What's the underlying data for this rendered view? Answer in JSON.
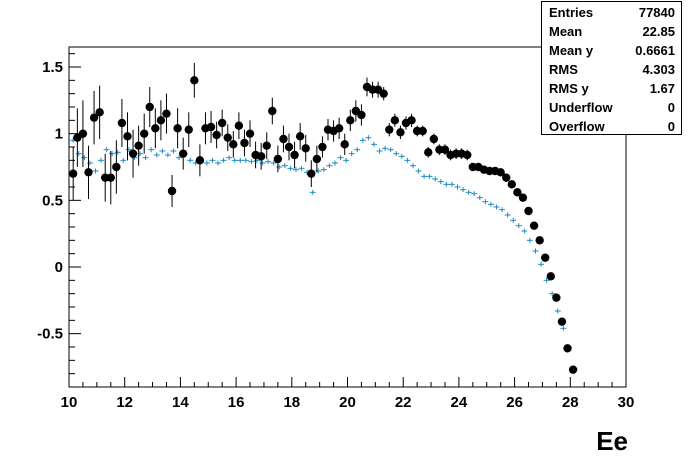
{
  "chart_data": {
    "type": "scatter",
    "xlabel": "Ee",
    "xlim": [
      10,
      30
    ],
    "ylim": [
      -0.9,
      1.65
    ],
    "x_ticks": [
      "10",
      "12",
      "14",
      "16",
      "18",
      "20",
      "22",
      "24",
      "26",
      "28",
      "30"
    ],
    "y_ticks": [
      "-0.5",
      "0",
      "0.5",
      "1",
      "1.5"
    ],
    "y_tick_values": [
      -0.5,
      0,
      0.5,
      1,
      1.5
    ],
    "colors": {
      "points": "#000000",
      "profile": "#1f8ac0",
      "frame": "#000000"
    },
    "series": [
      {
        "style": "black-markers-with-error-bars",
        "points": [
          [
            10.15,
            0.7,
            0.2
          ],
          [
            10.3,
            0.97,
            0.22
          ],
          [
            10.5,
            1.0,
            0.25
          ],
          [
            10.7,
            0.71,
            0.2
          ],
          [
            10.9,
            1.12,
            0.2
          ],
          [
            11.1,
            1.16,
            0.2
          ],
          [
            11.3,
            0.67,
            0.18
          ],
          [
            11.5,
            0.67,
            0.2
          ],
          [
            11.7,
            0.75,
            0.2
          ],
          [
            11.9,
            1.08,
            0.18
          ],
          [
            12.1,
            0.98,
            0.18
          ],
          [
            12.3,
            0.85,
            0.18
          ],
          [
            12.5,
            0.91,
            0.15
          ],
          [
            12.7,
            1.0,
            0.15
          ],
          [
            12.9,
            1.2,
            0.15
          ],
          [
            13.1,
            1.04,
            0.15
          ],
          [
            13.3,
            1.1,
            0.15
          ],
          [
            13.5,
            1.15,
            0.15
          ],
          [
            13.7,
            0.57,
            0.12
          ],
          [
            13.9,
            1.04,
            0.15
          ],
          [
            14.1,
            0.85,
            0.12
          ],
          [
            14.3,
            1.03,
            0.13
          ],
          [
            14.5,
            1.4,
            0.13
          ],
          [
            14.7,
            0.8,
            0.12
          ],
          [
            14.9,
            1.04,
            0.12
          ],
          [
            15.1,
            1.05,
            0.12
          ],
          [
            15.3,
            0.99,
            0.1
          ],
          [
            15.5,
            1.08,
            0.1
          ],
          [
            15.7,
            0.97,
            0.1
          ],
          [
            15.9,
            0.92,
            0.1
          ],
          [
            16.1,
            1.06,
            0.1
          ],
          [
            16.3,
            0.93,
            0.1
          ],
          [
            16.5,
            1.0,
            0.1
          ],
          [
            16.7,
            0.84,
            0.1
          ],
          [
            16.9,
            0.83,
            0.1
          ],
          [
            17.1,
            0.91,
            0.1
          ],
          [
            17.3,
            1.17,
            0.1
          ],
          [
            17.5,
            0.81,
            0.1
          ],
          [
            17.7,
            0.96,
            0.1
          ],
          [
            17.9,
            0.9,
            0.1
          ],
          [
            18.1,
            0.84,
            0.1
          ],
          [
            18.3,
            0.98,
            0.1
          ],
          [
            18.5,
            0.89,
            0.1
          ],
          [
            18.7,
            0.7,
            0.1
          ],
          [
            18.9,
            0.81,
            0.1
          ],
          [
            19.1,
            0.9,
            0.08
          ],
          [
            19.3,
            1.03,
            0.08
          ],
          [
            19.5,
            1.02,
            0.08
          ],
          [
            19.7,
            1.04,
            0.08
          ],
          [
            19.9,
            0.92,
            0.08
          ],
          [
            20.1,
            1.1,
            0.08
          ],
          [
            20.3,
            1.17,
            0.08
          ],
          [
            20.5,
            1.14,
            0.08
          ],
          [
            20.7,
            1.35,
            0.07
          ],
          [
            20.9,
            1.33,
            0.06
          ],
          [
            21.1,
            1.33,
            0.06
          ],
          [
            21.3,
            1.3,
            0.05
          ],
          [
            21.5,
            1.03,
            0.05
          ],
          [
            21.7,
            1.1,
            0.05
          ],
          [
            21.9,
            1.01,
            0.05
          ],
          [
            22.1,
            1.08,
            0.05
          ],
          [
            22.3,
            1.1,
            0.05
          ],
          [
            22.5,
            1.02,
            0.04
          ],
          [
            22.7,
            1.02,
            0.04
          ],
          [
            22.9,
            0.86,
            0.04
          ],
          [
            23.1,
            0.96,
            0.04
          ],
          [
            23.3,
            0.88,
            0.04
          ],
          [
            23.5,
            0.88,
            0.04
          ],
          [
            23.7,
            0.84,
            0.04
          ],
          [
            23.9,
            0.85,
            0.04
          ],
          [
            24.1,
            0.85,
            0.04
          ],
          [
            24.3,
            0.84,
            0.04
          ],
          [
            24.5,
            0.75,
            0.03
          ],
          [
            24.7,
            0.75,
            0.03
          ],
          [
            24.9,
            0.73,
            0.03
          ],
          [
            25.1,
            0.72,
            0.03
          ],
          [
            25.3,
            0.72,
            0.03
          ],
          [
            25.5,
            0.71,
            0.03
          ],
          [
            25.7,
            0.67,
            0.03
          ],
          [
            25.9,
            0.62,
            0.03
          ],
          [
            26.1,
            0.56,
            0.03
          ],
          [
            26.3,
            0.52,
            0.03
          ],
          [
            26.5,
            0.42,
            0.03
          ],
          [
            26.7,
            0.31,
            0.03
          ],
          [
            26.9,
            0.2,
            0.03
          ],
          [
            27.1,
            0.07,
            0.03
          ],
          [
            27.3,
            -0.07,
            0.03
          ],
          [
            27.5,
            -0.23,
            0.03
          ],
          [
            27.7,
            -0.41,
            0.03
          ],
          [
            27.9,
            -0.61,
            0.03
          ],
          [
            28.1,
            -0.77,
            0.03
          ]
        ]
      },
      {
        "style": "blue-profile-crosses",
        "points": [
          [
            10.15,
            0.95
          ],
          [
            10.35,
            0.85
          ],
          [
            10.55,
            0.82
          ],
          [
            10.75,
            0.78
          ],
          [
            10.95,
            0.72
          ],
          [
            11.15,
            0.8
          ],
          [
            11.35,
            0.88
          ],
          [
            11.55,
            0.85
          ],
          [
            11.75,
            0.86
          ],
          [
            11.95,
            0.8
          ],
          [
            12.15,
            0.88
          ],
          [
            12.35,
            0.82
          ],
          [
            12.55,
            0.85
          ],
          [
            12.75,
            0.82
          ],
          [
            12.95,
            0.88
          ],
          [
            13.15,
            0.84
          ],
          [
            13.35,
            0.87
          ],
          [
            13.55,
            0.84
          ],
          [
            13.75,
            0.87
          ],
          [
            13.95,
            0.82
          ],
          [
            14.15,
            0.85
          ],
          [
            14.35,
            0.8
          ],
          [
            14.55,
            0.78
          ],
          [
            14.75,
            0.8
          ],
          [
            14.95,
            0.78
          ],
          [
            15.15,
            0.8
          ],
          [
            15.35,
            0.78
          ],
          [
            15.55,
            0.8
          ],
          [
            15.75,
            0.82
          ],
          [
            15.95,
            0.8
          ],
          [
            16.15,
            0.8
          ],
          [
            16.35,
            0.8
          ],
          [
            16.55,
            0.79
          ],
          [
            16.75,
            0.8
          ],
          [
            16.95,
            0.78
          ],
          [
            17.15,
            0.79
          ],
          [
            17.35,
            0.78
          ],
          [
            17.55,
            0.75
          ],
          [
            17.75,
            0.76
          ],
          [
            17.95,
            0.74
          ],
          [
            18.15,
            0.73
          ],
          [
            18.35,
            0.74
          ],
          [
            18.55,
            0.71
          ],
          [
            18.75,
            0.56
          ],
          [
            18.95,
            0.72
          ],
          [
            19.15,
            0.73
          ],
          [
            19.35,
            0.76
          ],
          [
            19.55,
            0.78
          ],
          [
            19.75,
            0.82
          ],
          [
            19.95,
            0.8
          ],
          [
            20.15,
            0.85
          ],
          [
            20.35,
            0.88
          ],
          [
            20.55,
            0.95
          ],
          [
            20.75,
            0.97
          ],
          [
            20.95,
            0.92
          ],
          [
            21.15,
            0.87
          ],
          [
            21.35,
            0.89
          ],
          [
            21.55,
            0.88
          ],
          [
            21.75,
            0.85
          ],
          [
            21.95,
            0.83
          ],
          [
            22.15,
            0.8
          ],
          [
            22.35,
            0.76
          ],
          [
            22.55,
            0.72
          ],
          [
            22.75,
            0.68
          ],
          [
            22.95,
            0.68
          ],
          [
            23.15,
            0.66
          ],
          [
            23.35,
            0.64
          ],
          [
            23.55,
            0.62
          ],
          [
            23.75,
            0.62
          ],
          [
            23.95,
            0.6
          ],
          [
            24.15,
            0.58
          ],
          [
            24.35,
            0.56
          ],
          [
            24.55,
            0.55
          ],
          [
            24.75,
            0.52
          ],
          [
            24.95,
            0.49
          ],
          [
            25.15,
            0.47
          ],
          [
            25.35,
            0.45
          ],
          [
            25.55,
            0.43
          ],
          [
            25.75,
            0.39
          ],
          [
            25.95,
            0.35
          ],
          [
            26.15,
            0.31
          ],
          [
            26.35,
            0.27
          ],
          [
            26.55,
            0.2
          ],
          [
            26.75,
            0.12
          ],
          [
            26.95,
            0.02
          ],
          [
            27.15,
            -0.1
          ],
          [
            27.35,
            -0.2
          ],
          [
            27.55,
            -0.33
          ],
          [
            27.75,
            -0.46
          ],
          [
            27.95,
            -0.6
          ],
          [
            28.15,
            -0.76
          ]
        ]
      }
    ]
  },
  "stats": {
    "entries_label": "Entries",
    "entries_value": "77840",
    "mean_label": "Mean",
    "mean_value": "22.85",
    "mean_y_label": "Mean y",
    "mean_y_value": "0.6661",
    "rms_label": "RMS",
    "rms_value": "4.303",
    "rms_y_label": "RMS y",
    "rms_y_value": "1.67",
    "underflow_label": "Underflow",
    "underflow_value": "0",
    "overflow_label": "Overflow",
    "overflow_value": "0"
  }
}
